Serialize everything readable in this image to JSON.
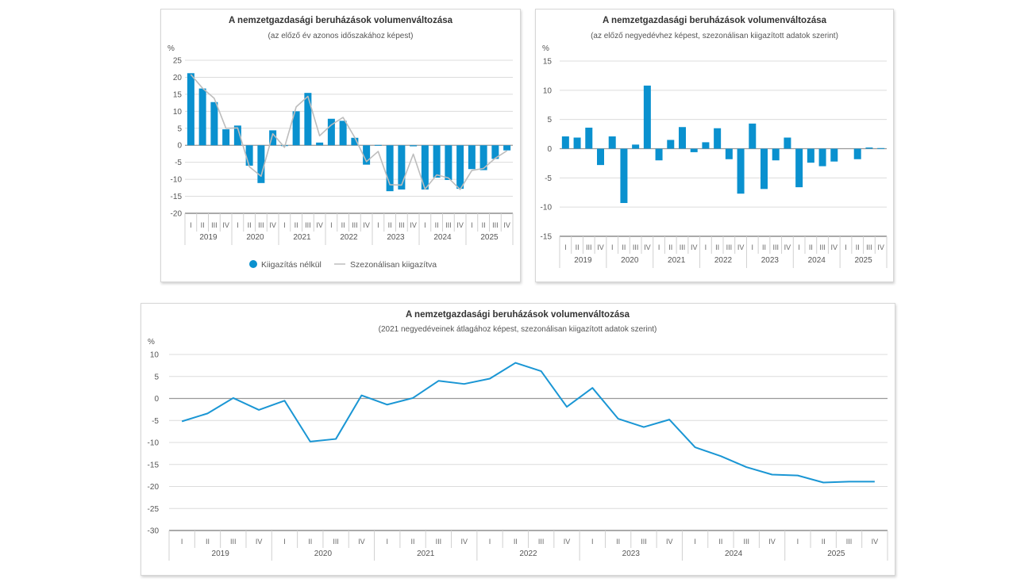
{
  "colors": {
    "bar": "#0a91cf",
    "line_sa": "#bdbdbd",
    "line_main": "#1a96d4",
    "grid": "#dcdcdc",
    "zero": "#999999"
  },
  "chart_data": [
    {
      "type": "bar",
      "title": "A nemzetgazdasági beruházások volumenváltozása",
      "subtitle": "(az előző év azonos időszakához képest)",
      "ylabel": "%",
      "ylim": [
        -20,
        25
      ],
      "yticks": [
        "25",
        "20",
        "15",
        "10",
        "5",
        "0",
        "-5",
        "-10",
        "-15",
        "-20"
      ],
      "ytick_values": [
        25,
        20,
        15,
        10,
        5,
        0,
        -5,
        -10,
        -15,
        -20
      ],
      "quarters": [
        "I",
        "II",
        "III",
        "IV"
      ],
      "years": [
        "2019",
        "2020",
        "2021",
        "2022",
        "2023",
        "2024",
        "2025"
      ],
      "grid": true,
      "legend_position": "bottom",
      "series": [
        {
          "name": "Kiigazítás nélkül",
          "kind": "bar",
          "values": [
            21.2,
            16.7,
            12.7,
            4.7,
            5.8,
            -6.0,
            -11.1,
            4.4,
            -0.1,
            10.0,
            15.4,
            0.8,
            7.8,
            7.2,
            2.2,
            -5.7,
            0.1,
            -13.5,
            -13.0,
            -0.3,
            -13.0,
            -9.5,
            -10.2,
            -12.8,
            -7.0,
            -7.3,
            -4.0,
            -1.5
          ]
        },
        {
          "name": "Szezonálisan kiigazítva",
          "kind": "line",
          "values": [
            20.8,
            16.8,
            13.8,
            5.0,
            5.1,
            -6.3,
            -9.1,
            3.4,
            -0.6,
            11.3,
            14.4,
            2.8,
            6.0,
            8.2,
            2.3,
            -4.8,
            -1.8,
            -11.6,
            -11.7,
            -2.6,
            -12.9,
            -8.7,
            -9.6,
            -13.0,
            -7.4,
            -6.8,
            -3.8,
            -1.6
          ]
        }
      ]
    },
    {
      "type": "bar",
      "title": "A nemzetgazdasági beruházások volumenváltozása",
      "subtitle": "(az előző negyedévhez képest, szezonálisan kiigazított adatok szerint)",
      "ylabel": "%",
      "ylim": [
        -15,
        15
      ],
      "yticks": [
        "15",
        "10",
        "5",
        "0",
        "-5",
        "-10",
        "-15"
      ],
      "ytick_values": [
        15,
        10,
        5,
        0,
        -5,
        -10,
        -15
      ],
      "quarters": [
        "I",
        "II",
        "III",
        "IV"
      ],
      "years": [
        "2019",
        "2020",
        "2021",
        "2022",
        "2023",
        "2024",
        "2025"
      ],
      "grid": true,
      "series": [
        {
          "name": "Szezonálisan kiigazítva",
          "kind": "bar",
          "values": [
            2.1,
            1.9,
            3.6,
            -2.8,
            2.1,
            -9.3,
            0.7,
            10.8,
            -2.0,
            1.5,
            3.7,
            -0.6,
            1.1,
            3.5,
            -1.8,
            -7.7,
            4.3,
            -6.9,
            -2.0,
            1.9,
            -6.6,
            -2.4,
            -3.0,
            -2.2,
            0.0,
            -1.8,
            0.2,
            0.1
          ]
        }
      ]
    },
    {
      "type": "line",
      "title": "A nemzetgazdasági beruházások volumenváltozása",
      "subtitle": "(2021 negyedéveinek átlagához képest, szezonálisan kiigazított adatok szerint)",
      "ylabel": "%",
      "ylim": [
        -30,
        10
      ],
      "yticks": [
        "10",
        "5",
        "0",
        "-5",
        "-10",
        "-15",
        "-20",
        "-25",
        "-30"
      ],
      "ytick_values": [
        10,
        5,
        0,
        -5,
        -10,
        -15,
        -20,
        -25,
        -30
      ],
      "quarters": [
        "I",
        "II",
        "III",
        "IV"
      ],
      "years": [
        "2019",
        "2020",
        "2021",
        "2022",
        "2023",
        "2024",
        "2025"
      ],
      "grid": true,
      "series": [
        {
          "name": "Szezonálisan kiigazítva",
          "kind": "line",
          "values": [
            -5.2,
            -3.4,
            0.1,
            -2.6,
            -0.5,
            -9.8,
            -9.2,
            0.7,
            -1.4,
            0.1,
            4.0,
            3.3,
            4.5,
            8.1,
            6.2,
            -1.9,
            2.4,
            -4.6,
            -6.5,
            -4.8,
            -11.1,
            -13.1,
            -15.6,
            -17.3,
            -17.5,
            -19.1,
            -18.9,
            -18.9
          ]
        }
      ]
    }
  ]
}
